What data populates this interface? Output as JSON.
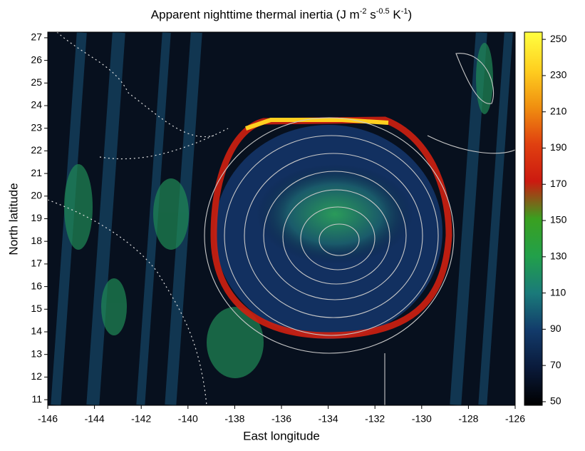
{
  "chart_data": {
    "type": "map",
    "title_parts": [
      "Apparent nighttime thermal inertia (J m",
      "-2",
      " s",
      "-0.5",
      " K",
      "-1",
      ")"
    ],
    "xlabel": "East longitude",
    "ylabel": "North latitude",
    "xlim": [
      -146,
      -126
    ],
    "xticks": [
      -146,
      -144,
      -142,
      -140,
      -138,
      -136,
      -134,
      -132,
      -130,
      -128,
      -126
    ],
    "ylim": [
      10.75,
      27.25
    ],
    "yticks": [
      11,
      12,
      13,
      14,
      15,
      16,
      17,
      18,
      19,
      20,
      21,
      22,
      23,
      24,
      25,
      26,
      27
    ],
    "colorbar": {
      "lim": [
        48,
        254
      ],
      "ticks": [
        50,
        70,
        90,
        110,
        130,
        150,
        170,
        190,
        210,
        230,
        250
      ],
      "colors": [
        "#000000",
        "#0a1a3a",
        "#123a6a",
        "#1a7a7a",
        "#22a04a",
        "#3aa020",
        "#cc1a10",
        "#e04010",
        "#f09010",
        "#ffd020",
        "#ffff40"
      ]
    }
  }
}
